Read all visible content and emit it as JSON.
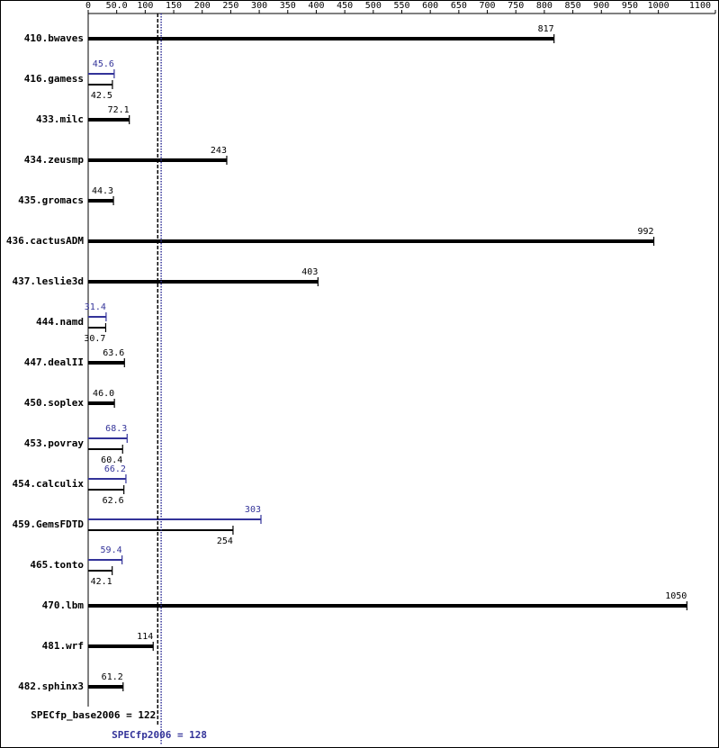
{
  "chart_data": {
    "type": "bar",
    "orientation": "horizontal",
    "categories": [
      "410.bwaves",
      "416.gamess",
      "433.milc",
      "434.zeusmp",
      "435.gromacs",
      "436.cactusADM",
      "437.leslie3d",
      "444.namd",
      "447.dealII",
      "450.soplex",
      "453.povray",
      "454.calculix",
      "459.GemsFDTD",
      "465.tonto",
      "470.lbm",
      "481.wrf",
      "482.sphinx3"
    ],
    "series": [
      {
        "name": "SPECfp_base2006",
        "color": "#000000",
        "values": [
          817,
          42.5,
          72.1,
          243,
          44.3,
          992,
          403,
          30.7,
          63.6,
          46.0,
          60.4,
          62.6,
          254,
          42.1,
          1050,
          114,
          61.2
        ],
        "value_labels": [
          "817",
          "42.5",
          "72.1",
          "243",
          "44.3",
          "992",
          "403",
          "30.7",
          "63.6",
          "46.0",
          "60.4",
          "62.6",
          "254",
          "42.1",
          "1050",
          "114",
          "61.2"
        ]
      },
      {
        "name": "SPECfp2006",
        "color": "#333399",
        "values": [
          null,
          45.6,
          null,
          null,
          null,
          null,
          null,
          31.4,
          null,
          null,
          68.3,
          66.2,
          303,
          59.4,
          null,
          null,
          null
        ]
      }
    ],
    "xlim": [
      0,
      1100
    ],
    "xticks": [
      0,
      {
        "value": 50,
        "label": "50.0"
      },
      100,
      150,
      200,
      250,
      300,
      350,
      400,
      450,
      500,
      550,
      600,
      650,
      700,
      750,
      800,
      850,
      900,
      950,
      1000,
      1100
    ],
    "reference_lines": [
      {
        "text": "SPECfp_base2006 = 122",
        "value": 122,
        "color": "#000000"
      },
      {
        "text": "SPECfp2006 = 128",
        "value": 128,
        "color": "#333399"
      }
    ]
  }
}
